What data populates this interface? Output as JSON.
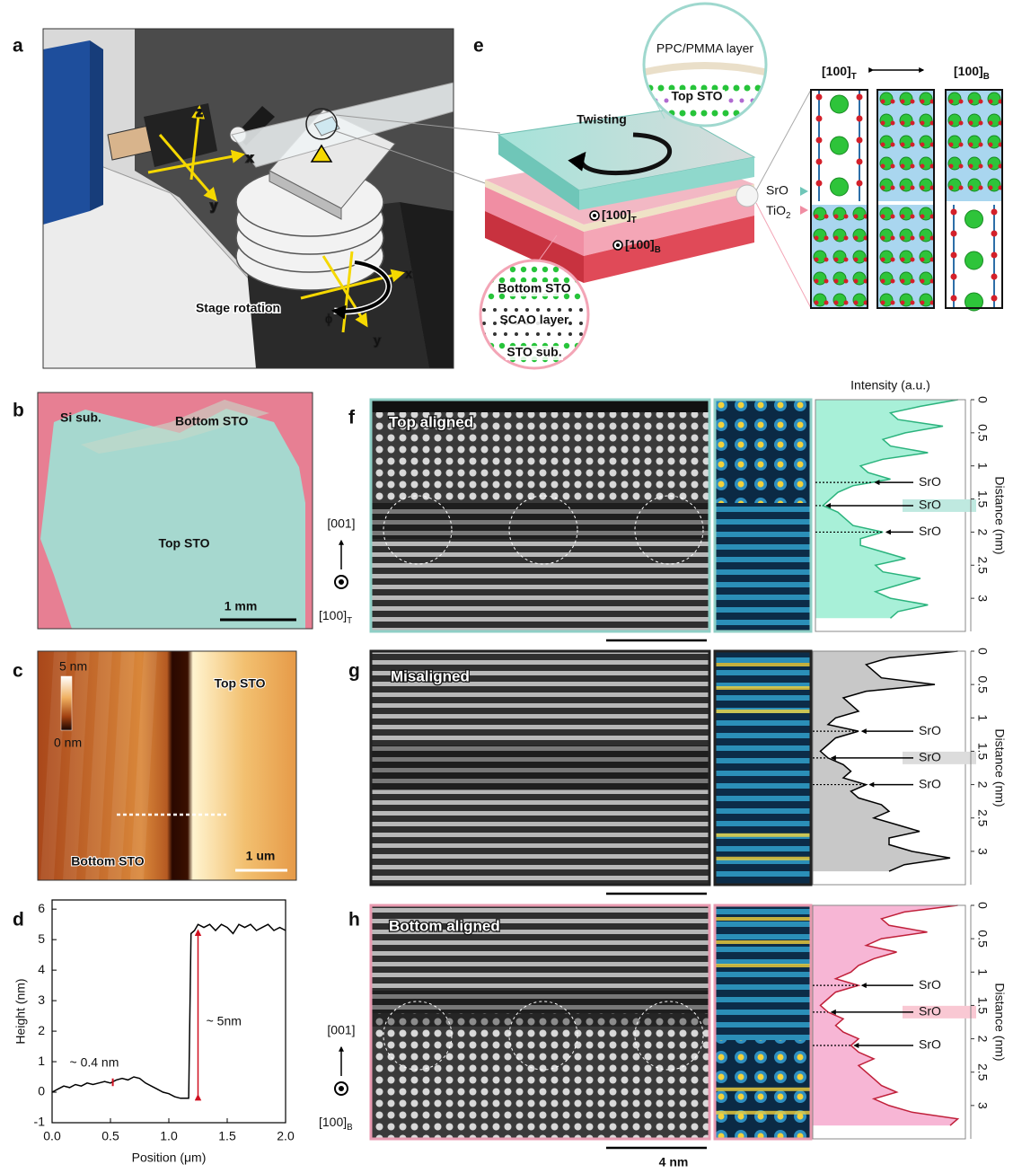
{
  "panels": {
    "a": {
      "letter": "a",
      "stage_rotation": "Stage rotation",
      "axes_top": [
        "z",
        "x",
        "y"
      ],
      "axes_bottom": [
        "x",
        "y"
      ],
      "phi": "ϕ"
    },
    "e": {
      "letter": "e",
      "twisting": "Twisting",
      "top_circle": [
        "PPC/PMMA layer",
        "Top STO"
      ],
      "top_dir": {
        "text": "[100]",
        "sub": "T"
      },
      "bottom_dir": {
        "text": "[100]",
        "sub": "B"
      },
      "bottom_circle": [
        "Bottom STO",
        "SCAO layer",
        "STO sub."
      ],
      "sro": "SrO",
      "tio2": {
        "text": "TiO",
        "sub": "2"
      },
      "columns_left": {
        "text": "[100]",
        "sub": "T"
      },
      "columns_right": {
        "text": "[100]",
        "sub": "B"
      }
    },
    "b": {
      "letter": "b",
      "labels": [
        "Si sub.",
        "Bottom STO",
        "Top STO"
      ],
      "scale": "1 mm"
    },
    "c": {
      "letter": "c",
      "colorbar": [
        "5 nm",
        "0 nm"
      ],
      "labels": [
        "Top STO",
        "Bottom STO"
      ],
      "scale": "1 um"
    },
    "d": {
      "letter": "d"
    },
    "f": {
      "letter": "f",
      "label": "Top aligned",
      "zone_axis": "[001]",
      "view": {
        "text": "[100]",
        "sub": "T"
      }
    },
    "g": {
      "letter": "g",
      "label": "Misaligned"
    },
    "h": {
      "letter": "h",
      "label": "Bottom aligned",
      "zone_axis": "[001]",
      "view": {
        "text": "[100]",
        "sub": "B"
      },
      "scale": "4 nm"
    }
  },
  "chart_data": [
    {
      "type": "line",
      "color": "#000000",
      "x": [
        0,
        0.05,
        0.1,
        0.15,
        0.2,
        0.25,
        0.3,
        0.35,
        0.4,
        0.45,
        0.5,
        0.55,
        0.6,
        0.65,
        0.7,
        0.75,
        0.8,
        0.85,
        0.9,
        0.95,
        1.0,
        1.05,
        1.1,
        1.15,
        1.17,
        1.19,
        1.22,
        1.25,
        1.3,
        1.35,
        1.4,
        1.45,
        1.5,
        1.55,
        1.6,
        1.65,
        1.7,
        1.75,
        1.8,
        1.85,
        1.9,
        1.95,
        2.0
      ],
      "values": [
        0.0,
        0.1,
        0.2,
        0.15,
        0.25,
        0.2,
        0.3,
        0.25,
        0.3,
        0.35,
        0.3,
        0.4,
        0.45,
        0.4,
        0.5,
        0.45,
        0.3,
        0.2,
        0.1,
        0.0,
        -0.05,
        -0.15,
        -0.2,
        -0.2,
        -0.2,
        5.2,
        5.3,
        5.5,
        5.4,
        5.5,
        5.3,
        5.5,
        5.4,
        5.2,
        5.5,
        5.4,
        5.5,
        5.3,
        5.4,
        5.5,
        5.3,
        5.4,
        5.3
      ],
      "xlim": [
        0,
        2
      ],
      "ylim": [
        -1,
        6.3
      ],
      "xticks": [
        {
          "value": 0,
          "label": "0.0"
        },
        {
          "value": 0.5,
          "label": "0.5"
        },
        {
          "value": 1,
          "label": "1.0"
        },
        {
          "value": 1.5,
          "label": "1.5"
        },
        {
          "value": 2,
          "label": "2.0"
        }
      ],
      "yticks": [
        -1,
        0,
        1,
        2,
        3,
        4,
        5,
        6
      ],
      "x_label": "Position (μm)",
      "y_label": "Height (nm)",
      "annotations": [
        {
          "text": "~ 0.4 nm"
        },
        {
          "text": "~ 5nm"
        }
      ]
    },
    {
      "type": "profile",
      "color": "#2bb37d",
      "fill": "#a8f0d8",
      "band_color": "#bfe9e0",
      "intensity_label": "Intensity (a.u.)",
      "distance_label": "Distance (nm)",
      "x": [
        0,
        0.1,
        0.2,
        0.3,
        0.4,
        0.5,
        0.6,
        0.7,
        0.8,
        0.9,
        1.0,
        1.1,
        1.2,
        1.3,
        1.4,
        1.5,
        1.6,
        1.7,
        1.8,
        1.9,
        2.0,
        2.1,
        2.2,
        2.3,
        2.4,
        2.5,
        2.6,
        2.7,
        2.8,
        2.9,
        3.0,
        3.1,
        3.2,
        3.3
      ],
      "values": [
        0.95,
        0.7,
        0.5,
        0.55,
        0.85,
        0.6,
        0.45,
        0.5,
        0.75,
        0.45,
        0.3,
        0.35,
        0.5,
        0.25,
        0.15,
        0.1,
        0.05,
        0.15,
        0.2,
        0.25,
        0.45,
        0.3,
        0.3,
        0.45,
        0.6,
        0.4,
        0.45,
        0.7,
        0.55,
        0.4,
        0.5,
        0.75,
        0.55,
        0.5
      ],
      "xlim": [
        0,
        3.5
      ],
      "ylim": [
        0,
        1
      ],
      "xticks": [
        0,
        0.5,
        1,
        1.5,
        2,
        2.5,
        3
      ],
      "annotations": [
        {
          "text": "SrO",
          "x": 1.25
        },
        {
          "text": "SrO",
          "x": 1.6
        },
        {
          "text": "SrO",
          "x": 2.0
        }
      ]
    },
    {
      "type": "profile",
      "color": "#000000",
      "fill": "#c8c8c8",
      "band_color": "#dcdcdc",
      "distance_label": "Distance (nm)",
      "x": [
        0,
        0.1,
        0.2,
        0.3,
        0.4,
        0.5,
        0.6,
        0.7,
        0.8,
        0.9,
        1.0,
        1.1,
        1.2,
        1.3,
        1.4,
        1.5,
        1.6,
        1.7,
        1.8,
        1.9,
        2.0,
        2.1,
        2.2,
        2.3,
        2.4,
        2.5,
        2.6,
        2.7,
        2.8,
        2.9,
        3.0,
        3.1,
        3.2,
        3.3
      ],
      "values": [
        0.95,
        0.5,
        0.35,
        0.4,
        0.45,
        0.8,
        0.35,
        0.2,
        0.25,
        0.3,
        0.15,
        0.1,
        0.3,
        0.15,
        0.1,
        0.05,
        0.1,
        0.2,
        0.25,
        0.2,
        0.35,
        0.25,
        0.3,
        0.45,
        0.5,
        0.4,
        0.55,
        0.7,
        0.5,
        0.5,
        0.65,
        0.9,
        0.6,
        0.5
      ],
      "xlim": [
        0,
        3.5
      ],
      "ylim": [
        0,
        1
      ],
      "xticks": [
        0,
        0.5,
        1,
        1.5,
        2,
        2.5,
        3
      ],
      "annotations": [
        {
          "text": "SrO",
          "x": 1.2
        },
        {
          "text": "SrO",
          "x": 1.6
        },
        {
          "text": "SrO",
          "x": 2.0
        }
      ]
    },
    {
      "type": "profile",
      "color": "#c0203a",
      "fill": "#f7b6d5",
      "band_color": "#f9c8d3",
      "distance_label": "Distance (nm)",
      "x": [
        0,
        0.1,
        0.2,
        0.3,
        0.4,
        0.5,
        0.6,
        0.7,
        0.8,
        0.9,
        1.0,
        1.1,
        1.2,
        1.3,
        1.4,
        1.5,
        1.6,
        1.7,
        1.8,
        1.9,
        2.0,
        2.1,
        2.2,
        2.3,
        2.4,
        2.5,
        2.6,
        2.7,
        2.8,
        2.9,
        3.0,
        3.1,
        3.2,
        3.3
      ],
      "values": [
        0.95,
        0.6,
        0.45,
        0.5,
        0.75,
        0.45,
        0.35,
        0.55,
        0.4,
        0.3,
        0.25,
        0.15,
        0.3,
        0.15,
        0.1,
        0.05,
        0.1,
        0.2,
        0.15,
        0.2,
        0.3,
        0.25,
        0.3,
        0.4,
        0.3,
        0.35,
        0.4,
        0.45,
        0.55,
        0.4,
        0.5,
        0.65,
        0.95,
        0.9
      ],
      "xlim": [
        0,
        3.5
      ],
      "ylim": [
        0,
        1
      ],
      "xticks": [
        0,
        0.5,
        1,
        1.5,
        2,
        2.5,
        3
      ],
      "annotations": [
        {
          "text": "SrO",
          "x": 1.2
        },
        {
          "text": "SrO",
          "x": 1.6
        },
        {
          "text": "SrO",
          "x": 2.1
        }
      ]
    }
  ]
}
